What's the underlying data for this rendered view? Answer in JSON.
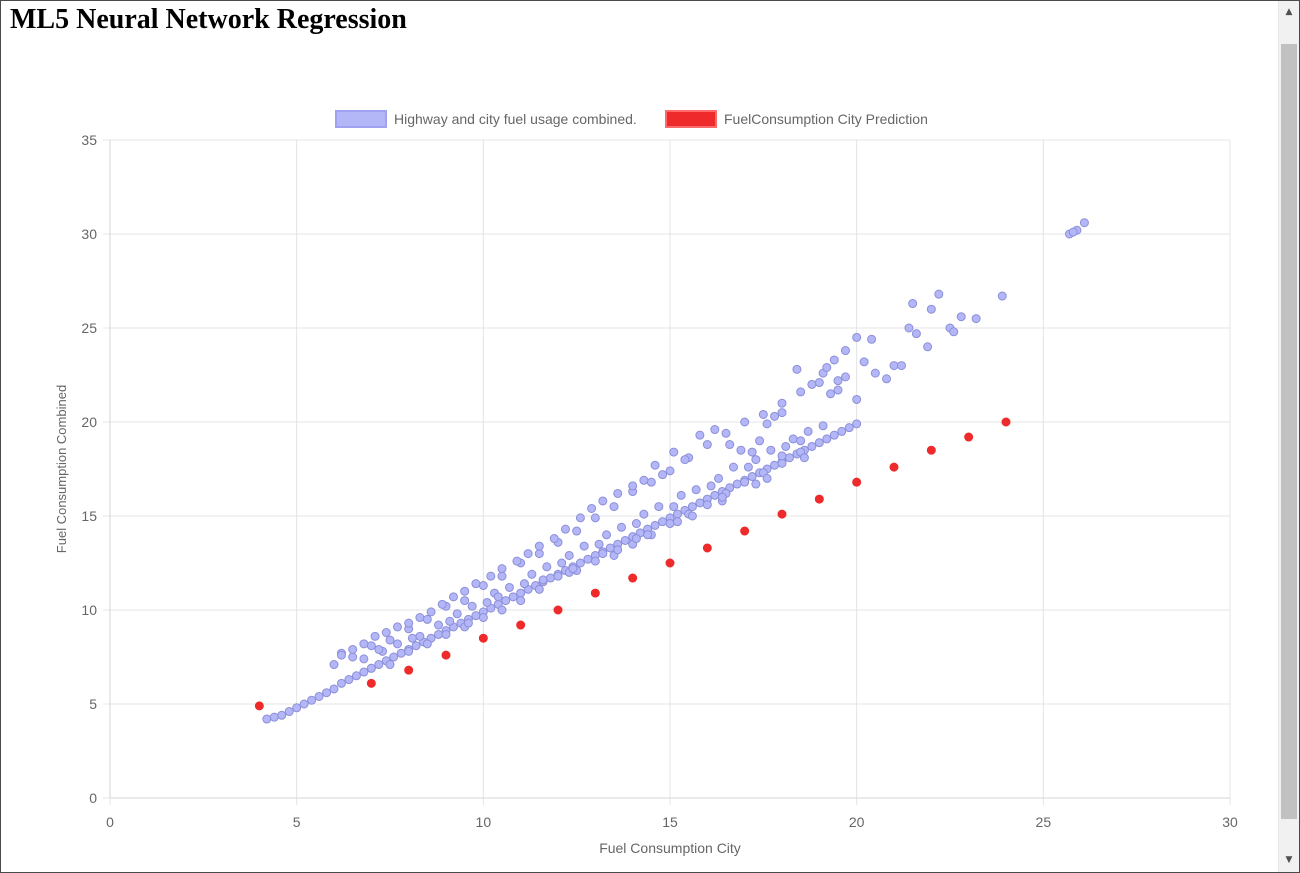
{
  "page": {
    "title": "ML5 Neural Network Regression"
  },
  "scrollbar": {
    "up_icon": "triangle-up-icon",
    "down_icon": "triangle-down-icon",
    "up_glyph": "▲",
    "down_glyph": "▼"
  },
  "colors": {
    "series_fill": "#b3b6f7",
    "series_border": "#8c8fd8",
    "prediction": "#ee2a2a",
    "grid": "#e4e4e4",
    "axis_text": "#666666"
  },
  "chart_data": {
    "type": "scatter",
    "title": "",
    "xlabel": "Fuel Consumption City",
    "ylabel": "Fuel Consumption Combined",
    "xlim": [
      0,
      30
    ],
    "ylim": [
      0,
      35
    ],
    "x_ticks": [
      0,
      5,
      10,
      15,
      20,
      25,
      30
    ],
    "y_ticks": [
      0,
      5,
      10,
      15,
      20,
      25,
      30,
      35
    ],
    "grid": true,
    "legend_position": "top-center",
    "series": [
      {
        "name": "Highway and city fuel usage combined.",
        "style": "light-purple circles",
        "points": [
          [
            4.2,
            4.2
          ],
          [
            4.4,
            4.3
          ],
          [
            4.6,
            4.4
          ],
          [
            4.8,
            4.6
          ],
          [
            5.0,
            4.8
          ],
          [
            5.2,
            5.0
          ],
          [
            5.4,
            5.2
          ],
          [
            5.6,
            5.4
          ],
          [
            5.8,
            5.6
          ],
          [
            6.0,
            5.8
          ],
          [
            6.2,
            6.1
          ],
          [
            6.4,
            6.3
          ],
          [
            6.6,
            6.5
          ],
          [
            6.8,
            6.7
          ],
          [
            7.0,
            6.9
          ],
          [
            7.2,
            7.1
          ],
          [
            7.4,
            7.3
          ],
          [
            7.6,
            7.5
          ],
          [
            7.8,
            7.7
          ],
          [
            8.0,
            7.9
          ],
          [
            8.2,
            8.1
          ],
          [
            8.4,
            8.3
          ],
          [
            8.6,
            8.5
          ],
          [
            8.8,
            8.7
          ],
          [
            9.0,
            8.9
          ],
          [
            9.2,
            9.1
          ],
          [
            9.4,
            9.3
          ],
          [
            9.6,
            9.5
          ],
          [
            9.8,
            9.7
          ],
          [
            10.0,
            9.9
          ],
          [
            10.2,
            10.1
          ],
          [
            10.4,
            10.3
          ],
          [
            10.6,
            10.5
          ],
          [
            10.8,
            10.7
          ],
          [
            11.0,
            10.9
          ],
          [
            11.2,
            11.1
          ],
          [
            11.4,
            11.3
          ],
          [
            11.6,
            11.5
          ],
          [
            11.8,
            11.7
          ],
          [
            12.0,
            11.9
          ],
          [
            12.2,
            12.1
          ],
          [
            12.4,
            12.3
          ],
          [
            12.6,
            12.5
          ],
          [
            12.8,
            12.7
          ],
          [
            13.0,
            12.9
          ],
          [
            13.2,
            13.1
          ],
          [
            13.4,
            13.3
          ],
          [
            13.6,
            13.5
          ],
          [
            13.8,
            13.7
          ],
          [
            14.0,
            13.9
          ],
          [
            14.2,
            14.1
          ],
          [
            14.4,
            14.3
          ],
          [
            14.6,
            14.5
          ],
          [
            14.8,
            14.7
          ],
          [
            15.0,
            14.9
          ],
          [
            15.2,
            15.1
          ],
          [
            15.4,
            15.3
          ],
          [
            15.6,
            15.5
          ],
          [
            15.8,
            15.7
          ],
          [
            16.0,
            15.9
          ],
          [
            16.2,
            16.1
          ],
          [
            16.4,
            16.3
          ],
          [
            16.6,
            16.5
          ],
          [
            16.8,
            16.7
          ],
          [
            17.0,
            16.9
          ],
          [
            17.2,
            17.1
          ],
          [
            17.4,
            17.3
          ],
          [
            17.6,
            17.5
          ],
          [
            17.8,
            17.7
          ],
          [
            18.0,
            17.9
          ],
          [
            18.2,
            18.1
          ],
          [
            18.4,
            18.3
          ],
          [
            18.6,
            18.5
          ],
          [
            18.8,
            18.7
          ],
          [
            19.0,
            18.9
          ],
          [
            19.2,
            19.1
          ],
          [
            19.4,
            19.3
          ],
          [
            19.6,
            19.5
          ],
          [
            19.8,
            19.7
          ],
          [
            20.0,
            19.9
          ],
          [
            6.2,
            7.7
          ],
          [
            6.5,
            7.5
          ],
          [
            7.0,
            8.1
          ],
          [
            7.5,
            8.4
          ],
          [
            8.0,
            9.0
          ],
          [
            8.5,
            9.5
          ],
          [
            9.0,
            10.2
          ],
          [
            9.5,
            10.5
          ],
          [
            10.0,
            11.3
          ],
          [
            10.5,
            11.8
          ],
          [
            11.0,
            12.5
          ],
          [
            11.5,
            13.0
          ],
          [
            12.0,
            13.6
          ],
          [
            12.5,
            14.2
          ],
          [
            13.0,
            14.9
          ],
          [
            13.5,
            15.5
          ],
          [
            14.0,
            16.3
          ],
          [
            14.5,
            16.8
          ],
          [
            15.0,
            17.4
          ],
          [
            15.5,
            18.1
          ],
          [
            16.0,
            18.8
          ],
          [
            16.5,
            19.4
          ],
          [
            17.0,
            20.0
          ],
          [
            17.5,
            20.4
          ],
          [
            18.0,
            21.0
          ],
          [
            18.5,
            21.6
          ],
          [
            19.0,
            22.1
          ],
          [
            19.5,
            22.2
          ],
          [
            7.0,
            6.9
          ],
          [
            7.5,
            7.1
          ],
          [
            8.0,
            7.8
          ],
          [
            8.5,
            8.2
          ],
          [
            9.0,
            8.7
          ],
          [
            9.5,
            9.1
          ],
          [
            10.0,
            9.6
          ],
          [
            10.5,
            10.0
          ],
          [
            11.0,
            10.5
          ],
          [
            11.5,
            11.1
          ],
          [
            12.0,
            11.8
          ],
          [
            12.5,
            12.1
          ],
          [
            13.0,
            12.6
          ],
          [
            13.5,
            12.9
          ],
          [
            14.0,
            13.5
          ],
          [
            14.5,
            14.0
          ],
          [
            15.0,
            14.6
          ],
          [
            15.5,
            15.1
          ],
          [
            16.0,
            15.6
          ],
          [
            16.5,
            16.2
          ],
          [
            17.0,
            16.8
          ],
          [
            17.5,
            17.3
          ],
          [
            18.0,
            17.8
          ],
          [
            18.5,
            18.4
          ],
          [
            6.0,
            7.1
          ],
          [
            6.8,
            7.4
          ],
          [
            7.3,
            7.8
          ],
          [
            7.7,
            8.2
          ],
          [
            8.3,
            8.6
          ],
          [
            8.8,
            9.2
          ],
          [
            9.3,
            9.8
          ],
          [
            9.7,
            10.2
          ],
          [
            10.3,
            10.9
          ],
          [
            10.7,
            11.2
          ],
          [
            11.3,
            11.9
          ],
          [
            11.7,
            12.3
          ],
          [
            12.3,
            12.9
          ],
          [
            12.7,
            13.4
          ],
          [
            13.3,
            14.0
          ],
          [
            13.7,
            14.4
          ],
          [
            14.3,
            15.1
          ],
          [
            14.7,
            15.5
          ],
          [
            15.3,
            16.1
          ],
          [
            15.7,
            16.4
          ],
          [
            16.3,
            17.0
          ],
          [
            16.7,
            17.6
          ],
          [
            17.3,
            18.0
          ],
          [
            17.7,
            18.5
          ],
          [
            18.3,
            19.1
          ],
          [
            18.7,
            19.5
          ],
          [
            7.2,
            7.9
          ],
          [
            8.1,
            8.5
          ],
          [
            9.1,
            9.4
          ],
          [
            10.1,
            10.4
          ],
          [
            11.1,
            11.4
          ],
          [
            12.1,
            12.5
          ],
          [
            13.1,
            13.5
          ],
          [
            14.1,
            14.6
          ],
          [
            15.1,
            15.5
          ],
          [
            16.1,
            16.6
          ],
          [
            17.1,
            17.6
          ],
          [
            18.1,
            18.7
          ],
          [
            19.1,
            19.8
          ],
          [
            12.3,
            12.0
          ],
          [
            13.2,
            13.0
          ],
          [
            14.1,
            13.8
          ],
          [
            15.2,
            14.7
          ],
          [
            16.4,
            15.8
          ],
          [
            17.3,
            16.7
          ],
          [
            18.0,
            18.2
          ],
          [
            18.5,
            19.0
          ],
          [
            19.5,
            21.7
          ],
          [
            20.0,
            21.2
          ],
          [
            20.2,
            23.2
          ],
          [
            20.8,
            22.3
          ],
          [
            21.0,
            23.0
          ],
          [
            21.4,
            25.0
          ],
          [
            21.6,
            24.7
          ],
          [
            21.9,
            24.0
          ],
          [
            22.2,
            26.8
          ],
          [
            22.5,
            25.0
          ],
          [
            22.8,
            25.6
          ],
          [
            23.2,
            25.5
          ],
          [
            23.9,
            26.7
          ],
          [
            21.5,
            26.3
          ],
          [
            22.0,
            26.0
          ],
          [
            22.6,
            24.8
          ],
          [
            20.5,
            22.6
          ],
          [
            19.7,
            22.4
          ],
          [
            19.3,
            21.5
          ],
          [
            19.1,
            22.6
          ],
          [
            18.8,
            22.0
          ],
          [
            18.4,
            22.8
          ],
          [
            18.0,
            20.5
          ],
          [
            17.8,
            20.3
          ],
          [
            17.6,
            19.9
          ],
          [
            17.4,
            19.0
          ],
          [
            17.2,
            18.4
          ],
          [
            16.9,
            18.5
          ],
          [
            16.6,
            18.8
          ],
          [
            16.2,
            19.6
          ],
          [
            15.8,
            19.3
          ],
          [
            15.4,
            18.0
          ],
          [
            15.1,
            18.4
          ],
          [
            14.8,
            17.2
          ],
          [
            14.6,
            17.7
          ],
          [
            14.3,
            16.9
          ],
          [
            14.0,
            16.6
          ],
          [
            13.6,
            16.2
          ],
          [
            13.2,
            15.8
          ],
          [
            12.9,
            15.4
          ],
          [
            12.6,
            14.9
          ],
          [
            12.2,
            14.3
          ],
          [
            11.9,
            13.8
          ],
          [
            11.5,
            13.4
          ],
          [
            11.2,
            13.0
          ],
          [
            10.9,
            12.6
          ],
          [
            10.5,
            12.2
          ],
          [
            10.2,
            11.8
          ],
          [
            9.8,
            11.4
          ],
          [
            9.5,
            11.0
          ],
          [
            9.2,
            10.7
          ],
          [
            8.9,
            10.3
          ],
          [
            8.6,
            9.9
          ],
          [
            8.3,
            9.6
          ],
          [
            8.0,
            9.3
          ],
          [
            7.7,
            9.1
          ],
          [
            7.4,
            8.8
          ],
          [
            7.1,
            8.6
          ],
          [
            6.8,
            8.2
          ],
          [
            6.5,
            7.9
          ],
          [
            6.2,
            7.6
          ],
          [
            9.6,
            9.3
          ],
          [
            10.4,
            10.7
          ],
          [
            11.6,
            11.6
          ],
          [
            12.4,
            12.2
          ],
          [
            13.6,
            13.2
          ],
          [
            14.4,
            14.0
          ],
          [
            15.6,
            15.0
          ],
          [
            16.4,
            16.0
          ],
          [
            17.6,
            17.0
          ],
          [
            18.6,
            18.1
          ],
          [
            25.7,
            30.0
          ],
          [
            25.9,
            30.2
          ],
          [
            26.1,
            30.6
          ],
          [
            25.8,
            30.1
          ],
          [
            21.2,
            23.0
          ],
          [
            20.4,
            24.4
          ],
          [
            20.0,
            24.5
          ],
          [
            19.7,
            23.8
          ],
          [
            19.4,
            23.3
          ],
          [
            19.2,
            22.9
          ]
        ]
      },
      {
        "name": "FuelConsumption City Prediction",
        "style": "red filled circles",
        "points": [
          [
            4,
            4.9
          ],
          [
            7,
            6.1
          ],
          [
            8,
            6.8
          ],
          [
            9,
            7.6
          ],
          [
            10,
            8.5
          ],
          [
            11,
            9.2
          ],
          [
            12,
            10.0
          ],
          [
            13,
            10.9
          ],
          [
            14,
            11.7
          ],
          [
            15,
            12.5
          ],
          [
            16,
            13.3
          ],
          [
            17,
            14.2
          ],
          [
            18,
            15.1
          ],
          [
            19,
            15.9
          ],
          [
            20,
            16.8
          ],
          [
            21,
            17.6
          ],
          [
            22,
            18.5
          ],
          [
            23,
            19.2
          ],
          [
            24,
            20.0
          ]
        ]
      }
    ]
  }
}
